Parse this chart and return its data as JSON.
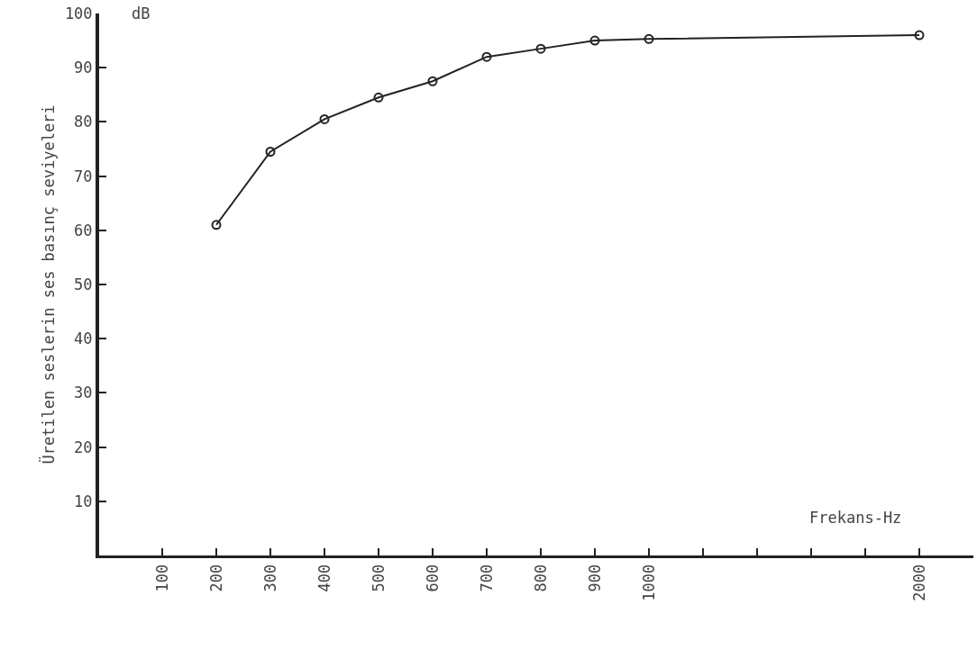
{
  "chart_data": {
    "type": "line",
    "xlabel": "Frekans-Hz",
    "ylabel": "Üretilen seslerin ses basınç seviyeleri",
    "annotations": [
      "dB"
    ],
    "categories": [
      "100",
      "200",
      "300",
      "400",
      "500",
      "600",
      "700",
      "800",
      "900",
      "1000",
      null,
      null,
      null,
      null,
      "2000"
    ],
    "series": [
      {
        "color": "#222222",
        "values": [
          null,
          61,
          74.5,
          80.5,
          84.5,
          87.5,
          92,
          93.5,
          95,
          95.3,
          null,
          null,
          null,
          null,
          96
        ]
      }
    ],
    "ylim": [
      0,
      100
    ],
    "yticks": [
      10,
      20,
      30,
      40,
      50,
      60,
      70,
      80,
      90,
      100
    ],
    "grid": false,
    "marker": "circle",
    "line_style": "solid"
  }
}
